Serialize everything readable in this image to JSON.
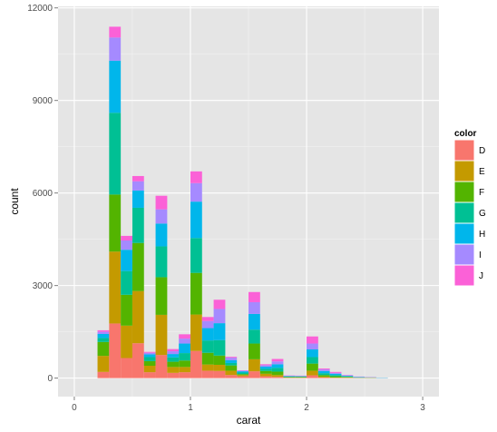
{
  "chart_data": {
    "type": "bar",
    "stacked": true,
    "title": "",
    "xlabel": "carat",
    "ylabel": "count",
    "xlim": [
      -0.14,
      3.14
    ],
    "ylim": [
      -600,
      12050
    ],
    "x_ticks": [
      "0",
      "1",
      "2",
      "3"
    ],
    "y_ticks": [
      "0",
      "3000",
      "6000",
      "9000",
      "12000"
    ],
    "x_tick_values": [
      0,
      1,
      2,
      3
    ],
    "y_tick_values": [
      0,
      3000,
      6000,
      9000,
      12000
    ],
    "bin_width": 0.1,
    "bin_centers": [
      0.25,
      0.35,
      0.45,
      0.55,
      0.65,
      0.75,
      0.85,
      0.95,
      1.05,
      1.15,
      1.25,
      1.35,
      1.45,
      1.55,
      1.65,
      1.75,
      1.85,
      1.95,
      2.05,
      2.15,
      2.25,
      2.35,
      2.45,
      2.55,
      2.65,
      2.75
    ],
    "panel_background": "#e5e5e5",
    "grid": true,
    "legend": {
      "title": "color",
      "position": "right"
    },
    "series": [
      {
        "name": "D",
        "color": "#f8766d",
        "values": [
          200,
          1770,
          650,
          1130,
          190,
          750,
          170,
          190,
          880,
          240,
          230,
          100,
          60,
          220,
          60,
          40,
          10,
          10,
          90,
          20,
          10,
          10,
          5,
          5,
          0,
          0
        ]
      },
      {
        "name": "E",
        "color": "#c49a00",
        "values": [
          520,
          2330,
          1050,
          1690,
          210,
          1300,
          190,
          170,
          1180,
          200,
          200,
          140,
          40,
          390,
          80,
          60,
          10,
          10,
          150,
          30,
          10,
          10,
          5,
          5,
          0,
          0
        ]
      },
      {
        "name": "F",
        "color": "#53b400",
        "values": [
          450,
          1850,
          1000,
          1560,
          150,
          1220,
          170,
          210,
          1350,
          380,
          300,
          170,
          30,
          510,
          90,
          110,
          15,
          15,
          230,
          50,
          40,
          20,
          5,
          5,
          0,
          0
        ]
      },
      {
        "name": "G",
        "color": "#00c094",
        "values": [
          130,
          2650,
          770,
          1140,
          130,
          1000,
          140,
          240,
          1130,
          400,
          500,
          80,
          50,
          450,
          70,
          120,
          15,
          15,
          210,
          60,
          40,
          15,
          10,
          5,
          5,
          0
        ]
      },
      {
        "name": "H",
        "color": "#00b6eb",
        "values": [
          130,
          1690,
          690,
          560,
          90,
          740,
          110,
          310,
          1180,
          400,
          550,
          90,
          40,
          510,
          70,
          120,
          15,
          10,
          250,
          70,
          40,
          20,
          10,
          5,
          5,
          0
        ]
      },
      {
        "name": "I",
        "color": "#a58aff",
        "values": [
          70,
          750,
          300,
          300,
          50,
          460,
          90,
          160,
          600,
          230,
          460,
          80,
          20,
          380,
          50,
          90,
          10,
          10,
          190,
          50,
          30,
          15,
          10,
          5,
          5,
          0
        ]
      },
      {
        "name": "J",
        "color": "#fb61d7",
        "values": [
          50,
          350,
          150,
          170,
          30,
          440,
          70,
          140,
          380,
          130,
          300,
          30,
          10,
          330,
          30,
          80,
          10,
          10,
          230,
          30,
          30,
          10,
          5,
          5,
          0,
          0
        ]
      }
    ]
  }
}
